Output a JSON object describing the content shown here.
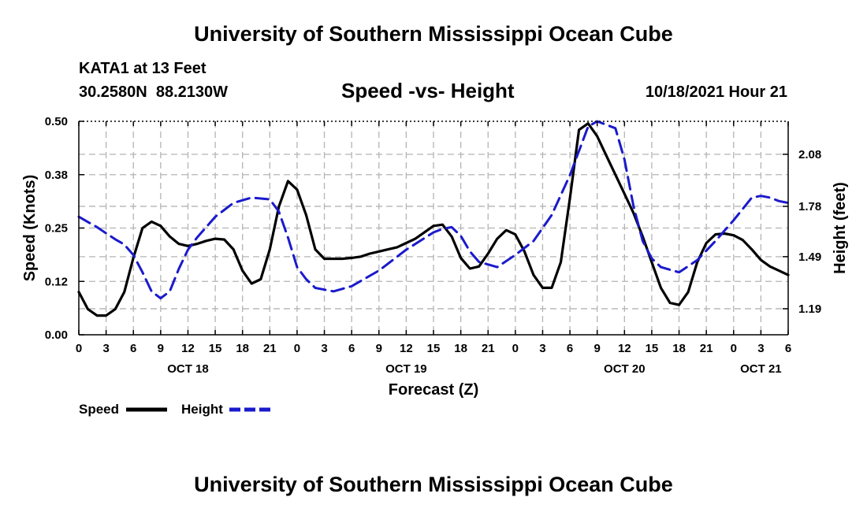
{
  "page": {
    "title_top": "University of Southern Mississippi Ocean Cube",
    "title_bottom": "University of Southern Mississippi Ocean Cube",
    "station": "KATA1 at 13 Feet",
    "coords": "30.2580N  88.2130W",
    "subtitle": "Speed -vs- Height",
    "datetime": "10/18/2021 Hour 21"
  },
  "colors": {
    "speed": "#000000",
    "height": "#1a1acc",
    "grid": "#b4b4b4"
  },
  "chart_data": {
    "type": "line",
    "title": "Speed -vs- Height",
    "xlabel": "Forecast (Z)",
    "ylabel": "Speed (Knots)",
    "y2label": "Height (feet)",
    "x_range": [
      0,
      78
    ],
    "ylim": [
      0,
      0.5
    ],
    "y2lim": [
      1.04,
      2.27
    ],
    "grid": true,
    "legend_position": "bottom-left",
    "x_tick_labels": [
      "0",
      "3",
      "6",
      "9",
      "12",
      "15",
      "18",
      "21",
      "0",
      "3",
      "6",
      "9",
      "12",
      "15",
      "18",
      "21",
      "0",
      "3",
      "6",
      "9",
      "12",
      "15",
      "18",
      "21",
      "0",
      "3",
      "6"
    ],
    "y_ticks": [
      {
        "v": 0,
        "label": "0.00"
      },
      {
        "v": 0.125,
        "label": "0.12"
      },
      {
        "v": 0.25,
        "label": "0.25"
      },
      {
        "v": 0.375,
        "label": "0.38"
      },
      {
        "v": 0.5,
        "label": "0.50"
      }
    ],
    "y2_ticks": [
      {
        "v": 1.19,
        "label": "1.19"
      },
      {
        "v": 1.49,
        "label": "1.49"
      },
      {
        "v": 1.78,
        "label": "1.78"
      },
      {
        "v": 2.08,
        "label": "2.08"
      }
    ],
    "date_labels": [
      {
        "x": 12,
        "label": "OCT 18"
      },
      {
        "x": 36,
        "label": "OCT 19"
      },
      {
        "x": 60,
        "label": "OCT 20"
      },
      {
        "x": 75,
        "label": "OCT 21"
      }
    ],
    "series": [
      {
        "name": "Speed",
        "axis": "left",
        "style": "solid",
        "x": [
          0,
          1,
          2,
          3,
          4,
          5,
          6,
          7,
          8,
          9,
          10,
          11,
          12,
          13,
          14,
          15,
          16,
          17,
          18,
          19,
          20,
          21,
          22,
          23,
          24,
          25,
          26,
          27,
          28,
          29,
          30,
          31,
          32,
          33,
          34,
          35,
          36,
          37,
          38,
          39,
          40,
          41,
          42,
          43,
          44,
          45,
          46,
          47,
          48,
          49,
          50,
          51,
          52,
          53,
          54,
          55,
          56,
          57,
          58,
          59,
          60,
          61,
          62,
          63,
          64,
          65,
          66,
          67,
          68,
          69,
          70,
          71,
          72,
          73,
          74,
          75,
          76,
          77,
          78
        ],
        "values": [
          0.1,
          0.06,
          0.045,
          0.045,
          0.06,
          0.1,
          0.18,
          0.25,
          0.265,
          0.255,
          0.23,
          0.213,
          0.208,
          0.213,
          0.22,
          0.225,
          0.223,
          0.2,
          0.15,
          0.12,
          0.13,
          0.2,
          0.3,
          0.36,
          0.34,
          0.28,
          0.2,
          0.178,
          0.178,
          0.178,
          0.18,
          0.183,
          0.19,
          0.195,
          0.2,
          0.205,
          0.215,
          0.225,
          0.24,
          0.255,
          0.258,
          0.23,
          0.18,
          0.155,
          0.16,
          0.19,
          0.225,
          0.245,
          0.235,
          0.195,
          0.14,
          0.11,
          0.11,
          0.17,
          0.32,
          0.48,
          0.495,
          0.465,
          0.42,
          0.375,
          0.33,
          0.285,
          0.23,
          0.17,
          0.11,
          0.075,
          0.07,
          0.1,
          0.17,
          0.215,
          0.235,
          0.237,
          0.233,
          0.222,
          0.2,
          0.175,
          0.16,
          0.15,
          0.14
        ]
      },
      {
        "name": "Height",
        "axis": "right",
        "style": "dashed",
        "x": [
          0,
          2,
          4,
          5,
          6,
          7,
          8,
          9,
          10,
          11,
          12,
          13,
          15,
          17,
          19,
          21,
          22,
          23,
          24,
          25,
          26,
          27,
          28,
          30,
          33,
          36,
          39,
          40,
          41,
          42,
          43,
          44,
          46,
          48,
          50,
          52,
          54,
          56,
          57,
          58,
          59,
          60,
          61,
          62,
          63,
          64,
          66,
          68,
          70,
          72,
          74,
          75,
          76,
          77,
          78
        ],
        "values": [
          1.72,
          1.66,
          1.59,
          1.56,
          1.5,
          1.4,
          1.29,
          1.25,
          1.29,
          1.42,
          1.53,
          1.6,
          1.72,
          1.8,
          1.83,
          1.82,
          1.75,
          1.6,
          1.43,
          1.36,
          1.31,
          1.3,
          1.29,
          1.32,
          1.41,
          1.53,
          1.63,
          1.65,
          1.66,
          1.61,
          1.52,
          1.46,
          1.43,
          1.5,
          1.58,
          1.73,
          1.96,
          2.24,
          2.27,
          2.25,
          2.23,
          2.05,
          1.78,
          1.58,
          1.48,
          1.43,
          1.4,
          1.47,
          1.58,
          1.7,
          1.83,
          1.84,
          1.83,
          1.81,
          1.8
        ]
      }
    ]
  }
}
